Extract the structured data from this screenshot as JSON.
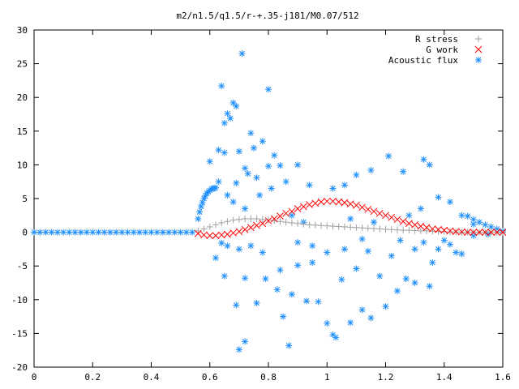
{
  "chart_data": {
    "type": "scatter",
    "title": "m2/n1.5/q1.5/r-+.35-j181/M0.07/512",
    "xlabel": "",
    "ylabel": "",
    "xlim": [
      0,
      1.6
    ],
    "ylim": [
      -20,
      30
    ],
    "x_ticks": [
      "0",
      "0.2",
      "0.4",
      "0.6",
      "0.8",
      "1",
      "1.2",
      "1.4",
      "1.6"
    ],
    "y_ticks": [
      "30",
      "25",
      "20",
      "15",
      "10",
      "5",
      "0",
      "-5",
      "-10",
      "-15",
      "-20"
    ],
    "grid": false,
    "legend_position": "top-right",
    "series": [
      {
        "name": "R stress",
        "marker": "plus",
        "color": "#a0a0a0",
        "points": [
          [
            0.56,
            0.2
          ],
          [
            0.58,
            0.5
          ],
          [
            0.6,
            0.8
          ],
          [
            0.62,
            1.1
          ],
          [
            0.64,
            1.4
          ],
          [
            0.66,
            1.6
          ],
          [
            0.68,
            1.8
          ],
          [
            0.7,
            1.9
          ],
          [
            0.72,
            2.0
          ],
          [
            0.74,
            2.0
          ],
          [
            0.76,
            2.0
          ],
          [
            0.78,
            1.9
          ],
          [
            0.8,
            1.8
          ],
          [
            0.82,
            1.7
          ],
          [
            0.84,
            1.6
          ],
          [
            0.86,
            1.5
          ],
          [
            0.88,
            1.4
          ],
          [
            0.9,
            1.3
          ],
          [
            0.92,
            1.2
          ],
          [
            0.94,
            1.1
          ],
          [
            0.96,
            1.05
          ],
          [
            0.98,
            1.0
          ],
          [
            1.0,
            0.95
          ],
          [
            1.02,
            0.9
          ],
          [
            1.04,
            0.85
          ],
          [
            1.06,
            0.8
          ],
          [
            1.08,
            0.75
          ],
          [
            1.1,
            0.7
          ],
          [
            1.12,
            0.65
          ],
          [
            1.14,
            0.6
          ],
          [
            1.16,
            0.55
          ],
          [
            1.18,
            0.5
          ],
          [
            1.2,
            0.45
          ],
          [
            1.22,
            0.4
          ],
          [
            1.24,
            0.35
          ],
          [
            1.26,
            0.3
          ],
          [
            1.28,
            0.3
          ],
          [
            1.3,
            0.25
          ],
          [
            1.32,
            0.2
          ],
          [
            1.34,
            0.2
          ],
          [
            1.36,
            0.15
          ],
          [
            1.38,
            0.1
          ],
          [
            1.4,
            0.1
          ],
          [
            1.42,
            0.05
          ],
          [
            1.44,
            0.05
          ],
          [
            1.46,
            0.0
          ],
          [
            1.48,
            0.0
          ],
          [
            1.5,
            0.0
          ],
          [
            1.52,
            0.0
          ],
          [
            1.54,
            0.0
          ],
          [
            1.56,
            0.0
          ],
          [
            1.58,
            0.0
          ],
          [
            1.6,
            0.0
          ]
        ]
      },
      {
        "name": "G work",
        "marker": "cross",
        "color": "#ff0000",
        "points": [
          [
            0.56,
            -0.2
          ],
          [
            0.58,
            -0.4
          ],
          [
            0.6,
            -0.5
          ],
          [
            0.62,
            -0.5
          ],
          [
            0.64,
            -0.4
          ],
          [
            0.66,
            -0.3
          ],
          [
            0.68,
            -0.1
          ],
          [
            0.7,
            0.1
          ],
          [
            0.72,
            0.4
          ],
          [
            0.74,
            0.7
          ],
          [
            0.76,
            1.0
          ],
          [
            0.78,
            1.3
          ],
          [
            0.8,
            1.7
          ],
          [
            0.82,
            2.0
          ],
          [
            0.84,
            2.4
          ],
          [
            0.86,
            2.8
          ],
          [
            0.88,
            3.1
          ],
          [
            0.9,
            3.5
          ],
          [
            0.92,
            3.8
          ],
          [
            0.94,
            4.1
          ],
          [
            0.96,
            4.3
          ],
          [
            0.98,
            4.5
          ],
          [
            1.0,
            4.6
          ],
          [
            1.02,
            4.6
          ],
          [
            1.04,
            4.5
          ],
          [
            1.06,
            4.4
          ],
          [
            1.08,
            4.2
          ],
          [
            1.1,
            4.0
          ],
          [
            1.12,
            3.7
          ],
          [
            1.14,
            3.4
          ],
          [
            1.16,
            3.1
          ],
          [
            1.18,
            2.8
          ],
          [
            1.2,
            2.5
          ],
          [
            1.22,
            2.2
          ],
          [
            1.24,
            1.9
          ],
          [
            1.26,
            1.6
          ],
          [
            1.28,
            1.3
          ],
          [
            1.3,
            1.1
          ],
          [
            1.32,
            0.9
          ],
          [
            1.34,
            0.7
          ],
          [
            1.36,
            0.5
          ],
          [
            1.38,
            0.4
          ],
          [
            1.4,
            0.3
          ],
          [
            1.42,
            0.2
          ],
          [
            1.44,
            0.1
          ],
          [
            1.46,
            0.05
          ],
          [
            1.48,
            0.0
          ],
          [
            1.5,
            0.0
          ],
          [
            1.52,
            0.0
          ],
          [
            1.54,
            0.0
          ],
          [
            1.56,
            0.0
          ],
          [
            1.58,
            0.0
          ],
          [
            1.6,
            0.0
          ]
        ]
      },
      {
        "name": "Acoustic flux",
        "marker": "star",
        "color": "#1f8fff",
        "points": [
          [
            0.0,
            0.0
          ],
          [
            0.02,
            0.0
          ],
          [
            0.04,
            0.0
          ],
          [
            0.06,
            0.0
          ],
          [
            0.08,
            0.0
          ],
          [
            0.1,
            0.0
          ],
          [
            0.12,
            0.0
          ],
          [
            0.14,
            0.0
          ],
          [
            0.16,
            0.0
          ],
          [
            0.18,
            0.0
          ],
          [
            0.2,
            0.0
          ],
          [
            0.22,
            0.0
          ],
          [
            0.24,
            0.0
          ],
          [
            0.26,
            0.0
          ],
          [
            0.28,
            0.0
          ],
          [
            0.3,
            0.0
          ],
          [
            0.32,
            0.0
          ],
          [
            0.34,
            0.0
          ],
          [
            0.36,
            0.0
          ],
          [
            0.38,
            0.0
          ],
          [
            0.4,
            0.0
          ],
          [
            0.42,
            0.0
          ],
          [
            0.44,
            0.0
          ],
          [
            0.46,
            0.0
          ],
          [
            0.48,
            0.0
          ],
          [
            0.5,
            0.0
          ],
          [
            0.52,
            0.0
          ],
          [
            0.54,
            0.0
          ],
          [
            0.56,
            2.0
          ],
          [
            0.565,
            3.0
          ],
          [
            0.57,
            3.8
          ],
          [
            0.575,
            4.4
          ],
          [
            0.58,
            5.0
          ],
          [
            0.585,
            5.4
          ],
          [
            0.59,
            5.8
          ],
          [
            0.595,
            6.0
          ],
          [
            0.6,
            6.2
          ],
          [
            0.605,
            6.4
          ],
          [
            0.61,
            6.5
          ],
          [
            0.615,
            6.5
          ],
          [
            0.62,
            6.6
          ],
          [
            0.64,
            21.7
          ],
          [
            0.65,
            16.2
          ],
          [
            0.66,
            17.6
          ],
          [
            0.67,
            16.9
          ],
          [
            0.68,
            19.2
          ],
          [
            0.69,
            18.7
          ],
          [
            0.71,
            26.5
          ],
          [
            0.74,
            14.7
          ],
          [
            0.75,
            12.5
          ],
          [
            0.8,
            21.2
          ],
          [
            0.78,
            13.5
          ],
          [
            0.82,
            11.4
          ],
          [
            0.63,
            12.2
          ],
          [
            0.65,
            11.8
          ],
          [
            0.6,
            10.5
          ],
          [
            0.7,
            12.0
          ],
          [
            0.72,
            9.5
          ],
          [
            0.76,
            8.1
          ],
          [
            0.63,
            7.5
          ],
          [
            0.69,
            7.3
          ],
          [
            0.73,
            8.7
          ],
          [
            0.8,
            9.8
          ],
          [
            0.84,
            9.9
          ],
          [
            0.9,
            10.0
          ],
          [
            0.66,
            5.5
          ],
          [
            0.68,
            4.5
          ],
          [
            0.72,
            3.5
          ],
          [
            0.77,
            5.5
          ],
          [
            0.81,
            6.5
          ],
          [
            0.86,
            7.5
          ],
          [
            0.94,
            7.0
          ],
          [
            1.02,
            6.5
          ],
          [
            1.06,
            7.0
          ],
          [
            1.1,
            8.5
          ],
          [
            1.15,
            9.2
          ],
          [
            1.21,
            11.3
          ],
          [
            1.26,
            9.0
          ],
          [
            1.33,
            10.8
          ],
          [
            1.35,
            10.0
          ],
          [
            1.38,
            5.2
          ],
          [
            1.42,
            4.5
          ],
          [
            1.46,
            2.5
          ],
          [
            1.5,
            1.2
          ],
          [
            1.48,
            2.4
          ],
          [
            1.5,
            1.9
          ],
          [
            1.52,
            1.5
          ],
          [
            1.54,
            1.1
          ],
          [
            1.56,
            0.8
          ],
          [
            1.58,
            0.5
          ],
          [
            1.6,
            0.2
          ],
          [
            0.62,
            -3.8
          ],
          [
            0.64,
            -1.6
          ],
          [
            0.66,
            -2.0
          ],
          [
            0.7,
            -2.5
          ],
          [
            0.74,
            -2.0
          ],
          [
            0.78,
            -3.0
          ],
          [
            0.65,
            -6.5
          ],
          [
            0.72,
            -6.8
          ],
          [
            0.79,
            -6.9
          ],
          [
            0.84,
            -5.6
          ],
          [
            0.9,
            -4.9
          ],
          [
            0.95,
            -4.5
          ],
          [
            0.69,
            -10.8
          ],
          [
            0.76,
            -10.5
          ],
          [
            0.83,
            -8.5
          ],
          [
            0.88,
            -9.2
          ],
          [
            0.93,
            -10.2
          ],
          [
            0.97,
            -10.3
          ],
          [
            0.72,
            -16.2
          ],
          [
            0.7,
            -17.4
          ],
          [
            0.85,
            -12.5
          ],
          [
            0.87,
            -16.8
          ],
          [
            1.0,
            -13.5
          ],
          [
            1.03,
            -15.6
          ],
          [
            1.02,
            -15.2
          ],
          [
            1.08,
            -13.4
          ],
          [
            1.12,
            -11.5
          ],
          [
            1.15,
            -12.7
          ],
          [
            1.2,
            -11.0
          ],
          [
            1.24,
            -8.7
          ],
          [
            1.05,
            -7.0
          ],
          [
            1.1,
            -5.4
          ],
          [
            1.18,
            -6.5
          ],
          [
            1.27,
            -6.9
          ],
          [
            1.3,
            -7.5
          ],
          [
            1.35,
            -8.0
          ],
          [
            1.0,
            -3.0
          ],
          [
            1.06,
            -2.5
          ],
          [
            1.14,
            -2.8
          ],
          [
            1.22,
            -3.5
          ],
          [
            1.3,
            -2.5
          ],
          [
            1.38,
            -2.5
          ],
          [
            1.4,
            -1.2
          ],
          [
            1.42,
            -1.8
          ],
          [
            1.44,
            -3.0
          ],
          [
            1.46,
            -3.2
          ],
          [
            1.5,
            -0.5
          ],
          [
            1.55,
            -0.3
          ],
          [
            0.9,
            -1.5
          ],
          [
            0.95,
            -2.0
          ],
          [
            1.12,
            -1.0
          ],
          [
            1.25,
            -1.2
          ],
          [
            1.33,
            -1.5
          ],
          [
            1.36,
            -4.5
          ],
          [
            0.88,
            2.5
          ],
          [
            0.92,
            1.5
          ],
          [
            1.08,
            2.0
          ],
          [
            1.16,
            1.5
          ],
          [
            1.28,
            2.5
          ],
          [
            1.32,
            3.5
          ]
        ]
      }
    ]
  }
}
